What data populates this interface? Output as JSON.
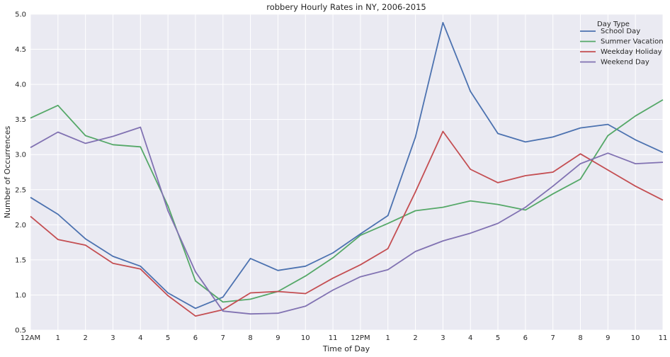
{
  "chart_data": {
    "type": "line",
    "title": "robbery Hourly Rates in NY, 2006-2015",
    "xlabel": "Time of Day",
    "ylabel": "Number of Occurrences",
    "categories": [
      "12AM",
      "1",
      "2",
      "3",
      "4",
      "5",
      "6",
      "7",
      "8",
      "9",
      "10",
      "11",
      "12PM",
      "1",
      "2",
      "3",
      "4",
      "5",
      "6",
      "7",
      "8",
      "9",
      "10",
      "11"
    ],
    "ylim": [
      0.5,
      5.0
    ],
    "yticks": [
      "0.5",
      "1.0",
      "1.5",
      "2.0",
      "2.5",
      "3.0",
      "3.5",
      "4.0",
      "4.5",
      "5.0"
    ],
    "grid": true,
    "legend": {
      "title": "Day Type",
      "position": "top-right"
    },
    "series": [
      {
        "name": "School Day",
        "color": "#4c72b0",
        "values": [
          2.39,
          2.15,
          1.8,
          1.55,
          1.41,
          1.03,
          0.81,
          0.97,
          1.52,
          1.35,
          1.41,
          1.6,
          1.87,
          2.13,
          3.25,
          4.88,
          3.9,
          3.3,
          3.18,
          3.25,
          3.38,
          3.43,
          3.21,
          3.03
        ]
      },
      {
        "name": "Summer Vacation",
        "color": "#55a868",
        "values": [
          3.52,
          3.7,
          3.27,
          3.14,
          3.11,
          2.27,
          1.2,
          0.9,
          0.94,
          1.05,
          1.27,
          1.53,
          1.85,
          2.02,
          2.2,
          2.25,
          2.34,
          2.29,
          2.21,
          2.44,
          2.65,
          3.27,
          3.55,
          3.78
        ]
      },
      {
        "name": "Weekday Holiday",
        "color": "#c44e52",
        "values": [
          2.12,
          1.79,
          1.71,
          1.45,
          1.37,
          0.99,
          0.7,
          0.79,
          1.03,
          1.05,
          1.02,
          1.24,
          1.43,
          1.66,
          2.47,
          3.33,
          2.79,
          2.6,
          2.7,
          2.75,
          3.01,
          2.78,
          2.55,
          2.35
        ]
      },
      {
        "name": "Weekend Day",
        "color": "#8172b2",
        "values": [
          3.1,
          3.32,
          3.16,
          3.26,
          3.39,
          2.2,
          1.33,
          0.77,
          0.73,
          0.74,
          0.84,
          1.07,
          1.26,
          1.36,
          1.62,
          1.77,
          1.88,
          2.02,
          2.25,
          2.55,
          2.87,
          3.02,
          2.87,
          2.89
        ]
      }
    ]
  }
}
